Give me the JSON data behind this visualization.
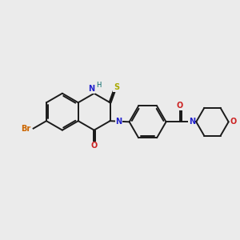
{
  "bg_color": "#ebebeb",
  "bond_color": "#1a1a1a",
  "N_color": "#2222cc",
  "O_color": "#cc2222",
  "S_color": "#aaaa00",
  "Br_color": "#cc6600",
  "H_color": "#006666",
  "lw": 1.4,
  "fs": 7.0,
  "figsize": [
    3.0,
    3.0
  ],
  "dpi": 100,
  "xlim": [
    0,
    10
  ],
  "ylim": [
    0,
    10
  ]
}
